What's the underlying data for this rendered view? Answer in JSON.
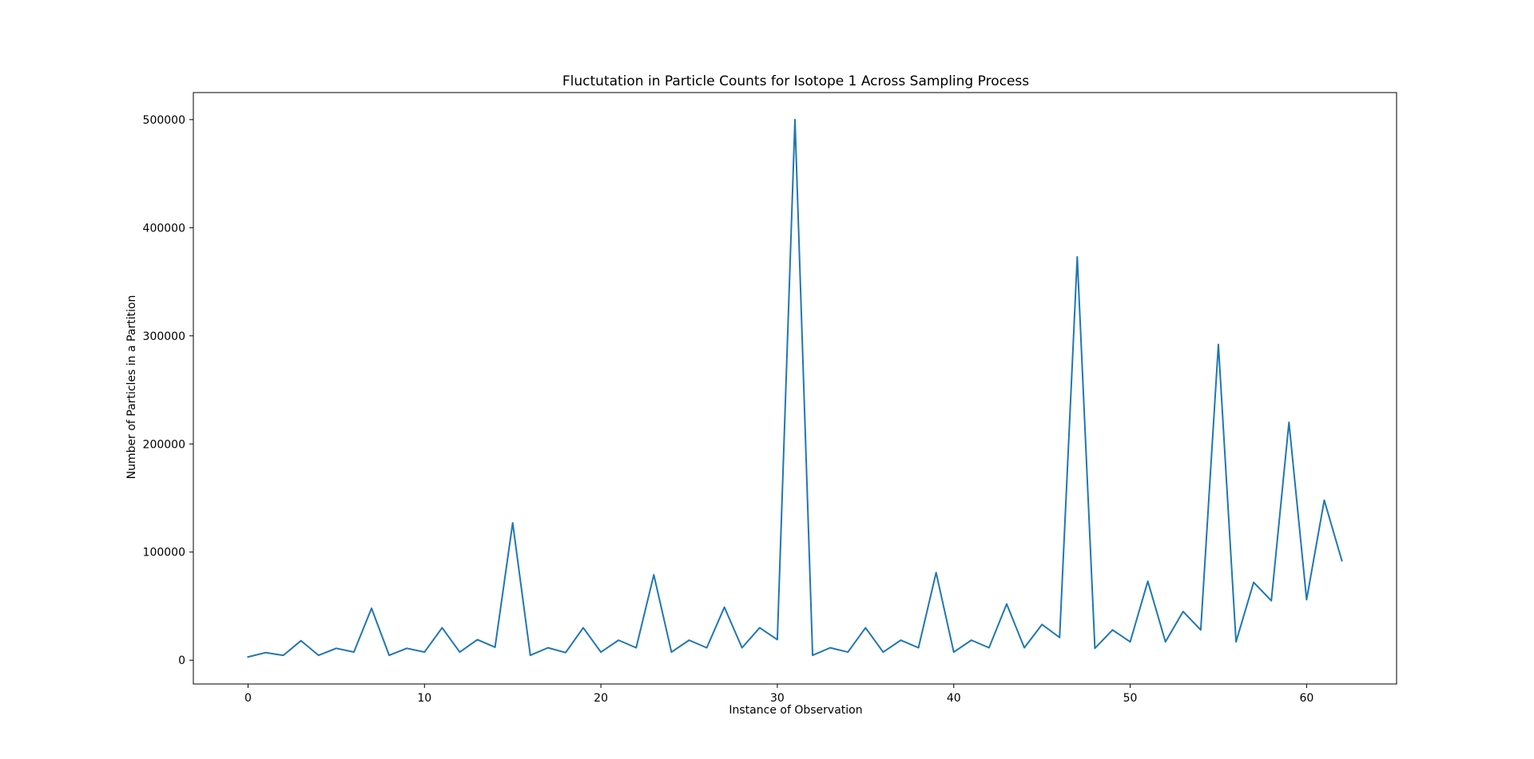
{
  "chart_data": {
    "type": "line",
    "title": "Fluctutation in Particle Counts for Isotope 1 Across Sampling Process",
    "xlabel": "Instance of Observation",
    "ylabel": "Number of Particles in a Partition",
    "xlim": [
      -3.1,
      65.1
    ],
    "ylim": [
      -22000,
      525000
    ],
    "xticks": [
      0,
      10,
      20,
      30,
      40,
      50,
      60
    ],
    "xtick_labels": [
      "0",
      "10",
      "20",
      "30",
      "40",
      "50",
      "60"
    ],
    "yticks": [
      0,
      100000,
      200000,
      300000,
      400000,
      500000
    ],
    "ytick_labels": [
      "0",
      "100000",
      "200000",
      "300000",
      "400000",
      "500000"
    ],
    "grid": false,
    "legend": false,
    "series": [
      {
        "color": "#1f77b4",
        "x": [
          0,
          1,
          2,
          3,
          4,
          5,
          6,
          7,
          8,
          9,
          10,
          11,
          12,
          13,
          14,
          15,
          16,
          17,
          18,
          19,
          20,
          21,
          22,
          23,
          24,
          25,
          26,
          27,
          28,
          29,
          30,
          31,
          32,
          33,
          34,
          35,
          36,
          37,
          38,
          39,
          40,
          41,
          42,
          43,
          44,
          45,
          46,
          47,
          48,
          49,
          50,
          51,
          52,
          53,
          54,
          55,
          56,
          57,
          58,
          59,
          60,
          61,
          62
        ],
        "values": [
          3000,
          7000,
          4500,
          18000,
          4500,
          11000,
          7500,
          48000,
          4500,
          11000,
          7500,
          30000,
          7500,
          19000,
          12000,
          127000,
          4500,
          11500,
          7000,
          30000,
          7500,
          18500,
          11500,
          79000,
          7500,
          18500,
          11500,
          49000,
          11500,
          30000,
          19000,
          500000,
          4500,
          11500,
          7500,
          30000,
          7500,
          18500,
          11500,
          81000,
          7500,
          18500,
          11500,
          52000,
          11500,
          33000,
          21000,
          373000,
          11000,
          28000,
          17000,
          73000,
          17000,
          45000,
          28000,
          292000,
          17000,
          72000,
          55000,
          220000,
          56000,
          148000,
          92000
        ]
      }
    ]
  }
}
